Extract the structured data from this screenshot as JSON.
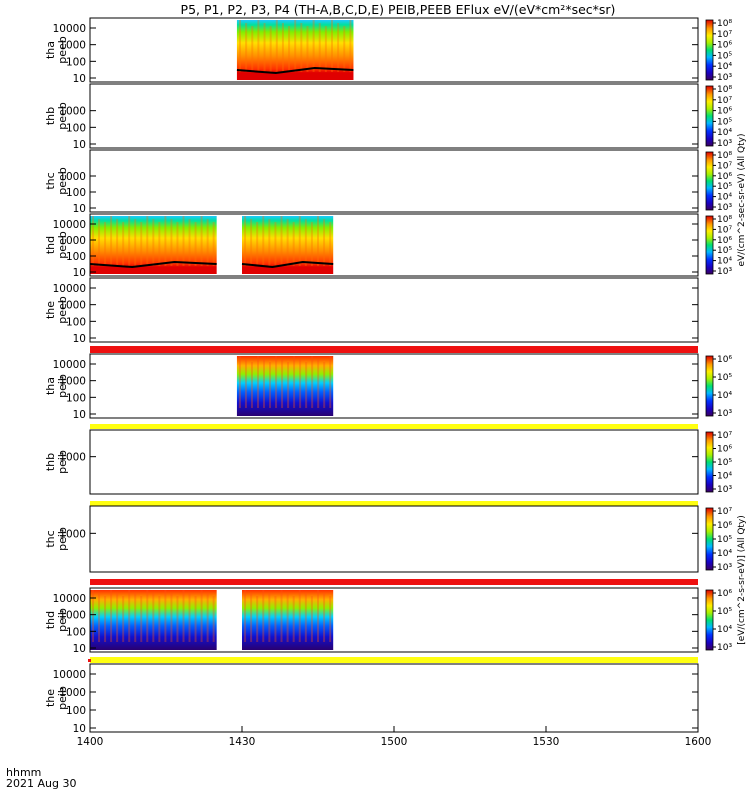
{
  "title": "P5, P1, P2, P3, P4 (TH-A,B,C,D,E) PEIB,PEEB EFlux eV/(eV*cm²*sec*sr)",
  "x_axis": {
    "label_line1": "hhmm",
    "label_line2": "2021 Aug 30",
    "ticks": [
      "1400",
      "1430",
      "1500",
      "1530",
      "1600"
    ]
  },
  "colorbar_labels": {
    "electron": "eV/(cm^2-sec-sr-eV) (All Qty)",
    "ion": "[eV/(cm^2-s-sr-eV)] (All Qty)"
  },
  "chart_data": {
    "type": "heatmap",
    "x_range_minutes_after_1400": [
      0,
      120
    ],
    "y_scale": "log",
    "panels": [
      {
        "id": "tha-peeb",
        "label_line1": "tha",
        "label_line2": "peeb",
        "yticks": [
          "10",
          "100",
          "1000",
          "10000"
        ],
        "data_blocks": [
          {
            "from": 29,
            "to": 52
          }
        ],
        "colorbar_ticks": [
          "10³",
          "10⁴",
          "10⁵",
          "10⁶",
          "10⁷",
          "10⁸"
        ]
      },
      {
        "id": "thb-peeb",
        "label_line1": "thb",
        "label_line2": "peeb",
        "yticks": [
          "10",
          "100",
          "1000"
        ],
        "data_blocks": [],
        "colorbar_ticks": [
          "10³",
          "10⁴",
          "10⁵",
          "10⁶",
          "10⁷",
          "10⁸"
        ]
      },
      {
        "id": "thc-peeb",
        "label_line1": "thc",
        "label_line2": "peeb",
        "yticks": [
          "10",
          "100",
          "1000"
        ],
        "data_blocks": [],
        "colorbar_ticks": [
          "10³",
          "10⁴",
          "10⁵",
          "10⁶",
          "10⁷",
          "10⁸"
        ]
      },
      {
        "id": "thd-peeb",
        "label_line1": "thd",
        "label_line2": "peeb",
        "yticks": [
          "10",
          "100",
          "1000",
          "10000"
        ],
        "data_blocks": [
          {
            "from": 0,
            "to": 25
          },
          {
            "from": 30,
            "to": 48
          }
        ],
        "colorbar_ticks": [
          "10³",
          "10⁴",
          "10⁵",
          "10⁶",
          "10⁷",
          "10⁸"
        ]
      },
      {
        "id": "the-peeb",
        "label_line1": "the",
        "label_line2": "peeb",
        "yticks": [
          "10",
          "100",
          "1000",
          "10000"
        ],
        "data_blocks": [],
        "colorbar_ticks": []
      },
      {
        "id": "tha-peib",
        "label_line1": "tha",
        "label_line2": "peib",
        "yticks": [
          "10",
          "100",
          "1000",
          "10000"
        ],
        "data_blocks": [
          {
            "from": 29,
            "to": 48
          }
        ],
        "colorbar_ticks": [
          "10³",
          "10⁴",
          "10⁵",
          "10⁶"
        ]
      },
      {
        "id": "thb-peib",
        "label_line1": "thb",
        "label_line2": "peib",
        "yticks": [
          "1000"
        ],
        "data_blocks": [],
        "colorbar_ticks": [
          "10³",
          "10⁴",
          "10⁵",
          "10⁶",
          "10⁷"
        ]
      },
      {
        "id": "thc-peib",
        "label_line1": "thc",
        "label_line2": "peib",
        "yticks": [
          "1000"
        ],
        "data_blocks": [],
        "colorbar_ticks": [
          "10³",
          "10⁴",
          "10⁵",
          "10⁶",
          "10⁷"
        ]
      },
      {
        "id": "thd-peib",
        "label_line1": "thd",
        "label_line2": "peib",
        "yticks": [
          "10",
          "100",
          "1000",
          "10000"
        ],
        "data_blocks": [
          {
            "from": 0,
            "to": 25
          },
          {
            "from": 30,
            "to": 48
          }
        ],
        "colorbar_ticks": [
          "10³",
          "10⁴",
          "10⁵",
          "10⁶"
        ]
      },
      {
        "id": "the-peib",
        "label_line1": "the",
        "label_line2": "peib",
        "yticks": [
          "10",
          "100",
          "1000",
          "10000"
        ],
        "data_blocks": [],
        "colorbar_ticks": []
      }
    ]
  },
  "colors": {
    "spectrum": [
      "#3a0060",
      "#1a00c0",
      "#0030ff",
      "#00b8ff",
      "#00e070",
      "#a8f000",
      "#ffee00",
      "#ff9a00",
      "#ff2a00",
      "#d80000"
    ],
    "red_band": "#ee1010",
    "yellow_band": "#ffff10"
  }
}
